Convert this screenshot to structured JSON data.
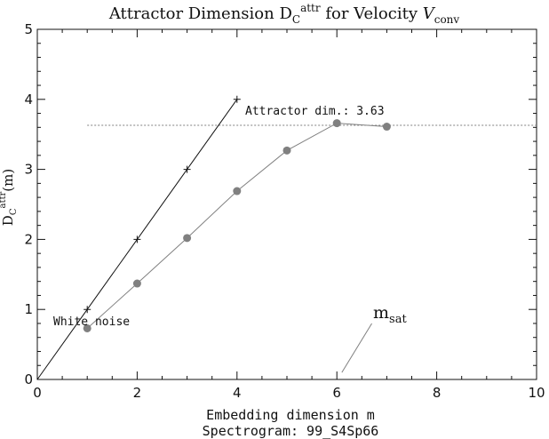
{
  "chart_data": {
    "type": "line",
    "title_prefix": "Attractor Dimension D",
    "title_sub": "C",
    "title_sup": "attr",
    "title_mid": " for Velocity ",
    "title_var": "V",
    "title_var_sub": "conv",
    "ylabel_main": "D",
    "ylabel_sub": "C",
    "ylabel_sup": "attr",
    "ylabel_suffix": "(m)",
    "xlabel": "Embedding dimension m",
    "subcaption": "Spectrogram: 99_S4Sp66",
    "xlim": [
      0,
      10
    ],
    "ylim": [
      0,
      5
    ],
    "x_ticks": [
      "0",
      "2",
      "4",
      "6",
      "8",
      "10"
    ],
    "y_ticks": [
      "0",
      "1",
      "2",
      "3",
      "4",
      "5"
    ],
    "series": [
      {
        "marker": "plus",
        "x": [
          0,
          1,
          2,
          3,
          4
        ],
        "y": [
          0,
          1,
          2,
          3,
          4
        ]
      },
      {
        "marker": "circle",
        "x": [
          1,
          2,
          3,
          4,
          5,
          6,
          7
        ],
        "y": [
          0.73,
          1.37,
          2.02,
          2.69,
          3.27,
          3.66,
          3.61
        ]
      }
    ],
    "annotations": {
      "white_noise": "White noise",
      "attractor_dim_label": "Attractor dim.: 3.63",
      "attractor_dim_value": 3.63,
      "attractor_line_x": [
        1,
        10
      ],
      "m_sat_main": "m",
      "m_sat_sub": "sat",
      "m_sat_pointer": {
        "from": [
          6.7,
          0.8
        ],
        "to": [
          6.1,
          0.1
        ]
      }
    },
    "colors": {
      "axes": "#111111",
      "noise_line": "#111111",
      "data_line": "#808080",
      "data_marker": "#808080",
      "reference_line": "#808080"
    }
  }
}
